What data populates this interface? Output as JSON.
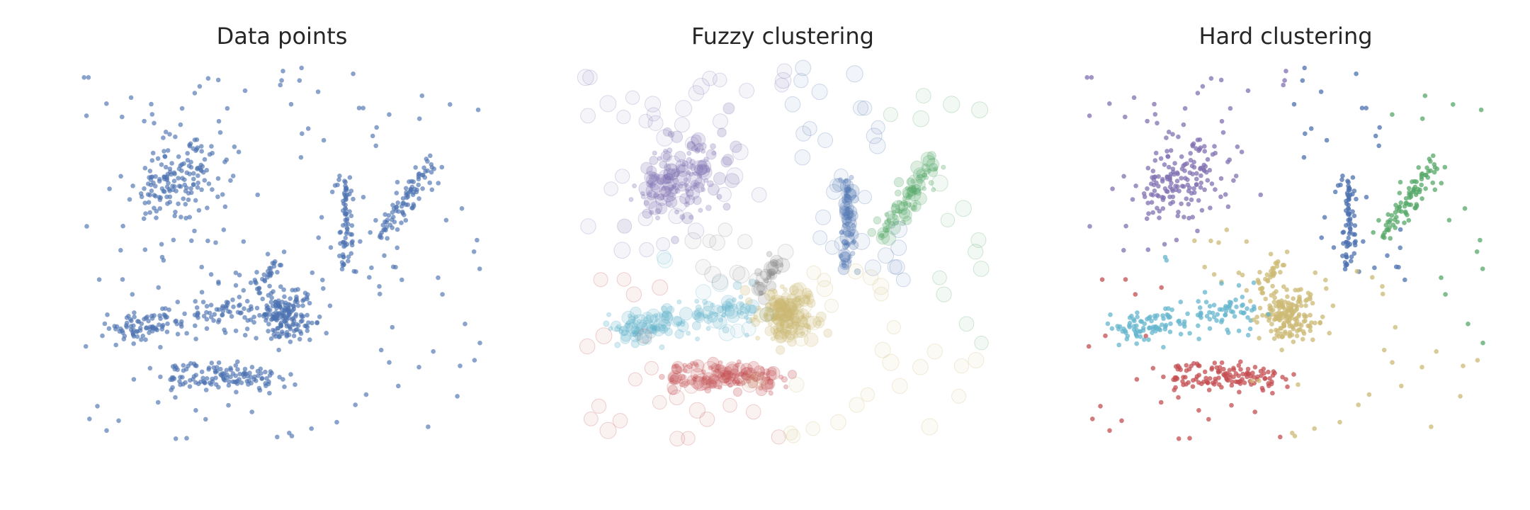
{
  "figure": {
    "background": "#ffffff"
  },
  "chart_data": [
    {
      "type": "scatter",
      "title": "Data points",
      "xlabel": "",
      "ylabel": "",
      "axes_visible": false,
      "grid": false,
      "legend": "none",
      "color": "#4c72b0",
      "point_style": "small dots, alpha ~0.6",
      "xlim": [
        0,
        100
      ],
      "ylim": [
        0,
        100
      ]
    },
    {
      "type": "scatter",
      "title": "Fuzzy clustering",
      "xlabel": "",
      "ylabel": "",
      "axes_visible": false,
      "grid": false,
      "legend": "none",
      "point_style": "translucent circles; size and opacity scale with cluster membership",
      "cluster_colors": [
        "#8172b2",
        "#64b5cd",
        "#55a868",
        "#4c72b0",
        "#ccb974",
        "#c44e52",
        "#8c8c8c"
      ],
      "xlim": [
        0,
        100
      ],
      "ylim": [
        0,
        100
      ]
    },
    {
      "type": "scatter",
      "title": "Hard clustering",
      "xlabel": "",
      "ylabel": "",
      "axes_visible": false,
      "grid": false,
      "legend": "none",
      "point_style": "small dots colored by assigned cluster",
      "cluster_colors": [
        "#8172b2",
        "#64b5cd",
        "#55a868",
        "#4c72b0",
        "#ccb974",
        "#c44e52"
      ],
      "xlim": [
        0,
        100
      ],
      "ylim": [
        0,
        100
      ]
    }
  ]
}
